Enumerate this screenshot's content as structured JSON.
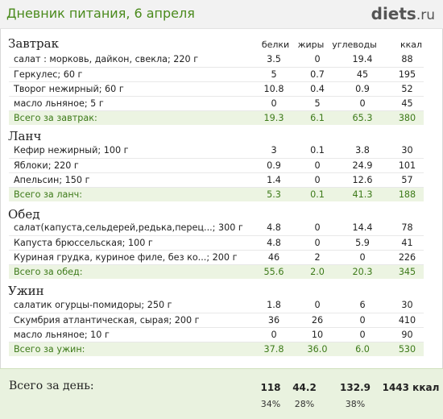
{
  "header": {
    "title": "Дневник питания, 6 апреля",
    "logo_main": "diets",
    "logo_suffix": ".ru"
  },
  "columns": {
    "protein": "белки",
    "fat": "жиры",
    "carbs": "углеводы",
    "kcal": "ккал"
  },
  "meals": [
    {
      "title": "Завтрак",
      "items": [
        {
          "name": "салат : морковь, дайкон, свекла; 220 г",
          "protein": "3.5",
          "fat": "0",
          "carbs": "19.4",
          "kcal": "88"
        },
        {
          "name": "Геркулес; 60 г",
          "protein": "5",
          "fat": "0.7",
          "carbs": "45",
          "kcal": "195"
        },
        {
          "name": "Творог нежирный; 60 г",
          "protein": "10.8",
          "fat": "0.4",
          "carbs": "0.9",
          "kcal": "52"
        },
        {
          "name": "масло льняное; 5 г",
          "protein": "0",
          "fat": "5",
          "carbs": "0",
          "kcal": "45"
        }
      ],
      "total": {
        "label": "Всего за завтрак:",
        "protein": "19.3",
        "fat": "6.1",
        "carbs": "65.3",
        "kcal": "380"
      }
    },
    {
      "title": "Ланч",
      "items": [
        {
          "name": "Кефир нежирный; 100 г",
          "protein": "3",
          "fat": "0.1",
          "carbs": "3.8",
          "kcal": "30"
        },
        {
          "name": "Яблоки; 220 г",
          "protein": "0.9",
          "fat": "0",
          "carbs": "24.9",
          "kcal": "101"
        },
        {
          "name": "Апельсин; 150 г",
          "protein": "1.4",
          "fat": "0",
          "carbs": "12.6",
          "kcal": "57"
        }
      ],
      "total": {
        "label": "Всего за ланч:",
        "protein": "5.3",
        "fat": "0.1",
        "carbs": "41.3",
        "kcal": "188"
      }
    },
    {
      "title": "Обед",
      "items": [
        {
          "name": "салат(капуста,сельдерей,редька,перец...; 300 г",
          "protein": "4.8",
          "fat": "0",
          "carbs": "14.4",
          "kcal": "78"
        },
        {
          "name": "Капуста брюссельская; 100 г",
          "protein": "4.8",
          "fat": "0",
          "carbs": "5.9",
          "kcal": "41"
        },
        {
          "name": "Куриная грудка, куриное филе, без ко...; 200 г",
          "protein": "46",
          "fat": "2",
          "carbs": "0",
          "kcal": "226"
        }
      ],
      "total": {
        "label": "Всего за обед:",
        "protein": "55.6",
        "fat": "2.0",
        "carbs": "20.3",
        "kcal": "345"
      }
    },
    {
      "title": "Ужин",
      "items": [
        {
          "name": "салатик огурцы-помидоры; 250 г",
          "protein": "1.8",
          "fat": "0",
          "carbs": "6",
          "kcal": "30"
        },
        {
          "name": "Скумбрия атлантическая, сырая; 200 г",
          "protein": "36",
          "fat": "26",
          "carbs": "0",
          "kcal": "410"
        },
        {
          "name": "масло льняное; 10 г",
          "protein": "0",
          "fat": "10",
          "carbs": "0",
          "kcal": "90"
        }
      ],
      "total": {
        "label": "Всего за ужин:",
        "protein": "37.8",
        "fat": "36.0",
        "carbs": "6.0",
        "kcal": "530"
      }
    }
  ],
  "day_total": {
    "label": "Всего за день:",
    "protein": "118",
    "fat": "44.2",
    "carbs": "132.9",
    "kcal": "1443 ккал",
    "protein_pct": "34%",
    "fat_pct": "28%",
    "carbs_pct": "38%"
  }
}
